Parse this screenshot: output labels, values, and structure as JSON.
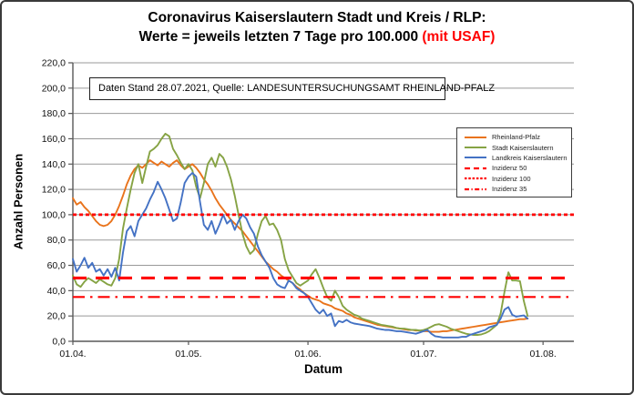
{
  "frame": {
    "background": "#ffffff",
    "border_color": "#3a3a3a"
  },
  "title": {
    "line1": "Coronavirus Kaiserslautern Stadt und Kreis / RLP:",
    "line2_black": "Werte = jeweils letzten 7 Tage pro 100.000 ",
    "line2_red": "(mit USAF)",
    "red_color": "#ff0000"
  },
  "info_box": {
    "text": "Daten Stand 28.07.2021, Quelle: LANDESUNTERSUCHUNGSAMT RHEINLAND-PFALZ"
  },
  "chart_data": {
    "type": "line",
    "xlabel": "Datum",
    "ylabel": "Anzahl Personen",
    "ylim": [
      0,
      220
    ],
    "ytick_step": 20,
    "ytick_labels": [
      "220,0",
      "200,0",
      "180,0",
      "160,0",
      "140,0",
      "120,0",
      "100,0",
      "80,0",
      "60,0",
      "40,0",
      "20,0",
      "0,0"
    ],
    "x_tick_labels": [
      "01.04.",
      "01.05.",
      "01.06.",
      "01.07.",
      "01.08."
    ],
    "x_tick_days": [
      0,
      30,
      61,
      91,
      122
    ],
    "x_domain_days": 130,
    "x_start": "01.04.2021",
    "x_end": "28.07.2021",
    "grid": "horizontal",
    "grid_color": "#999999",
    "axis_color": "#595959",
    "legend_position": "inside-right",
    "series": [
      {
        "name": "Rheinland-Pfalz",
        "color": "#E9731B",
        "values": [
          113,
          108,
          110,
          106,
          103,
          99,
          95,
          92,
          91,
          92,
          95,
          100,
          107,
          115,
          124,
          131,
          136,
          139,
          137,
          140,
          143,
          141,
          139,
          142,
          140,
          138,
          141,
          143,
          139,
          136,
          138,
          140,
          137,
          133,
          128,
          124,
          119,
          113,
          108,
          104,
          100,
          96,
          93,
          90,
          87,
          83,
          79,
          75,
          71,
          67,
          63,
          60,
          57,
          55,
          52,
          50,
          48,
          46,
          43,
          41,
          38,
          36,
          34,
          33,
          32,
          30,
          29,
          28,
          26,
          25,
          24,
          22,
          21,
          19,
          18,
          17,
          16,
          15,
          14,
          13,
          12.5,
          12,
          11.5,
          11,
          10.5,
          10,
          9.5,
          9,
          9,
          8.5,
          8.5,
          8,
          8,
          7.5,
          7.5,
          7.5,
          8,
          8,
          8.5,
          9,
          9.5,
          10,
          10.5,
          11,
          11.5,
          12,
          12.5,
          13,
          13.5,
          14,
          14.5,
          15,
          15.5,
          16,
          16.5,
          17,
          17.5,
          17.5,
          18
        ]
      },
      {
        "name": "Stadt Kaiserslautern",
        "color": "#86A344",
        "values": [
          52,
          45,
          43,
          47,
          50,
          48,
          46,
          49,
          47,
          45,
          44,
          50,
          65,
          89,
          105,
          120,
          133,
          140,
          125,
          138,
          150,
          152,
          155,
          160,
          164,
          162,
          152,
          147,
          141,
          136,
          140,
          135,
          122,
          113,
          125,
          140,
          145,
          138,
          148,
          145,
          138,
          128,
          115,
          100,
          85,
          75,
          69,
          72,
          85,
          95,
          99,
          92,
          93,
          88,
          80,
          65,
          56,
          51,
          46,
          44,
          46,
          48,
          53,
          57,
          50,
          42,
          35,
          32,
          40,
          35,
          28,
          25,
          23,
          21,
          20,
          18,
          17,
          16,
          15,
          14,
          13,
          12.5,
          12,
          11.5,
          10.5,
          10,
          10,
          9.5,
          9,
          9,
          8.5,
          9,
          10,
          11.5,
          13,
          13.5,
          12.5,
          11.5,
          10,
          9,
          8,
          7,
          6,
          5.5,
          5,
          5,
          5.5,
          6.5,
          8,
          10.5,
          13,
          22,
          39,
          54.5,
          48,
          48,
          47.5,
          32,
          20
        ]
      },
      {
        "name": "Landkreis Kaiserslautern",
        "color": "#4472C4",
        "values": [
          65,
          55,
          60,
          66,
          58,
          62,
          55,
          57,
          52,
          57,
          51,
          58,
          48,
          70,
          87,
          91,
          83,
          95,
          100,
          105,
          112,
          118,
          126,
          120,
          113,
          104,
          95,
          97,
          110,
          125,
          130,
          133,
          130,
          110,
          92,
          88,
          95,
          85,
          92,
          100,
          93,
          96,
          88,
          95,
          100,
          97,
          90,
          85,
          75,
          68,
          63,
          58,
          50,
          45,
          43,
          42,
          48,
          46,
          42,
          40,
          38,
          35,
          30,
          25,
          22,
          25,
          20,
          22,
          12,
          16,
          15,
          17,
          15,
          14,
          13.5,
          13,
          12.5,
          12,
          11,
          10,
          9.5,
          9,
          9,
          8.5,
          8,
          8,
          7.5,
          7,
          6.5,
          6,
          7,
          8,
          9,
          6,
          4,
          3.5,
          3,
          3,
          3,
          3,
          3,
          3.5,
          3.5,
          5,
          6,
          7,
          8,
          9,
          11,
          12,
          13,
          18,
          25,
          27,
          21,
          19.5,
          20,
          20.5,
          18
        ]
      }
    ],
    "reference_lines": [
      {
        "name": "Inzidenz 50",
        "value": 50,
        "color": "#FF0000",
        "style": "long-dash"
      },
      {
        "name": "Inzidenz 100",
        "value": 100,
        "color": "#FF0000",
        "style": "dotted"
      },
      {
        "name": "Inzidenz 35",
        "value": 35,
        "color": "#FF0000",
        "style": "dash-dot"
      }
    ]
  }
}
